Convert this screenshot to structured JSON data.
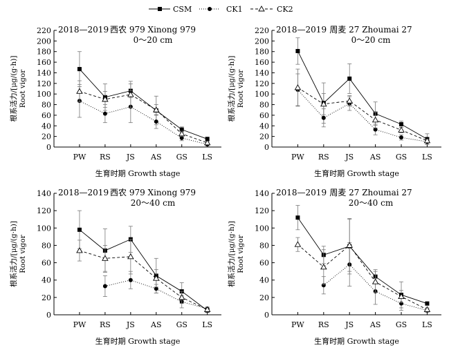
{
  "legend": [
    {
      "name": "CSM",
      "marker": "square",
      "line": "solid"
    },
    {
      "name": "CK1",
      "marker": "circle",
      "line": "dotted"
    },
    {
      "name": "CK2",
      "marker": "triangle",
      "line": "dashed"
    }
  ],
  "colors": {
    "line": "#000000",
    "error_bar": "#777777",
    "triangle_fill": "#ffffff"
  },
  "chart_data": [
    {
      "type": "line",
      "year": "2018—2019",
      "variety": "西农 979 Xinong 979",
      "depth": "0～20 cm",
      "ylabel_cn": "根系活力/[μg/(g·h)]",
      "ylabel_en": "Root vigor",
      "xlabel": "生育时期 Growth stage",
      "categories": [
        "PW",
        "RS",
        "JS",
        "AS",
        "GS",
        "LS"
      ],
      "ylim": [
        0,
        220
      ],
      "yticks": [
        0,
        20,
        40,
        60,
        80,
        100,
        120,
        140,
        160,
        180,
        200,
        220
      ],
      "series": [
        {
          "name": "CSM",
          "values": [
            147,
            94,
            106,
            69,
            33,
            15
          ],
          "errors": [
            33,
            25,
            13,
            27,
            5,
            4
          ]
        },
        {
          "name": "CK1",
          "values": [
            87,
            63,
            76,
            48,
            17,
            5
          ],
          "errors": [
            31,
            17,
            30,
            13,
            5,
            3
          ]
        },
        {
          "name": "CK2",
          "values": [
            105,
            90,
            99,
            70,
            25,
            8
          ],
          "errors": [
            20,
            15,
            25,
            10,
            5,
            3
          ]
        }
      ]
    },
    {
      "type": "line",
      "year": "2018—2019",
      "variety": "周麦 27 Zhoumai 27",
      "depth": "0～20 cm",
      "ylabel_cn": "根系活力/[μg/(g·h)]",
      "ylabel_en": "Root vigor",
      "xlabel": "生育时期 Growth stage",
      "categories": [
        "PW",
        "RS",
        "JS",
        "AS",
        "GS",
        "LS"
      ],
      "ylim": [
        0,
        220
      ],
      "yticks": [
        0,
        20,
        40,
        60,
        80,
        100,
        120,
        140,
        160,
        180,
        200,
        220
      ],
      "series": [
        {
          "name": "CSM",
          "values": [
            181,
            83,
            129,
            63,
            43,
            15
          ],
          "errors": [
            25,
            38,
            28,
            22,
            6,
            10
          ]
        },
        {
          "name": "CK1",
          "values": [
            108,
            55,
            82,
            33,
            18,
            10
          ],
          "errors": [
            30,
            17,
            13,
            10,
            5,
            4
          ]
        },
        {
          "name": "CK2",
          "values": [
            112,
            81,
            87,
            51,
            32,
            12
          ],
          "errors": [
            35,
            20,
            10,
            15,
            5,
            3
          ]
        }
      ]
    },
    {
      "type": "line",
      "year": "2018—2019",
      "variety": "西农 979 Xinong 979",
      "depth": "20～40 cm",
      "ylabel_cn": "根系活力/[μg/(g·h)]",
      "ylabel_en": "Root vigor",
      "xlabel": "生育时期 Growth stage",
      "categories": [
        "PW",
        "RS",
        "JS",
        "AS",
        "GS",
        "LS"
      ],
      "ylim": [
        0,
        140
      ],
      "yticks": [
        0,
        20,
        40,
        60,
        80,
        100,
        120,
        140
      ],
      "series": [
        {
          "name": "CSM",
          "values": [
            98,
            74,
            87,
            45,
            27,
            5
          ],
          "errors": [
            22,
            25,
            15,
            20,
            10,
            2
          ]
        },
        {
          "name": "CK1",
          "values": [
            null,
            33,
            40,
            30,
            15,
            7
          ],
          "errors": [
            0,
            12,
            10,
            5,
            7,
            2
          ]
        },
        {
          "name": "CK2",
          "values": [
            74,
            65,
            67,
            42,
            20,
            6
          ],
          "errors": [
            12,
            15,
            20,
            10,
            7,
            2
          ]
        }
      ]
    },
    {
      "type": "line",
      "year": "2018—2019",
      "variety": "周麦 27 Zhoumai 27",
      "depth": "20～40 cm",
      "ylabel_cn": "根系活力/[μg/(g·h)]",
      "ylabel_en": "Root vigor",
      "xlabel": "生育时期 Growth stage",
      "categories": [
        "PW",
        "RS",
        "JS",
        "AS",
        "GS",
        "LS"
      ],
      "ylim": [
        0,
        140
      ],
      "yticks": [
        0,
        20,
        40,
        60,
        80,
        100,
        120,
        140
      ],
      "series": [
        {
          "name": "CSM",
          "values": [
            112,
            69,
            79,
            44,
            23,
            13
          ],
          "errors": [
            14,
            10,
            32,
            8,
            15,
            2
          ]
        },
        {
          "name": "CK1",
          "values": [
            null,
            34,
            58,
            27,
            13,
            5
          ],
          "errors": [
            0,
            10,
            25,
            15,
            8,
            2
          ]
        },
        {
          "name": "CK2",
          "values": [
            81,
            55,
            80,
            38,
            21,
            6
          ],
          "errors": [
            8,
            20,
            30,
            12,
            7,
            2
          ]
        }
      ]
    }
  ]
}
